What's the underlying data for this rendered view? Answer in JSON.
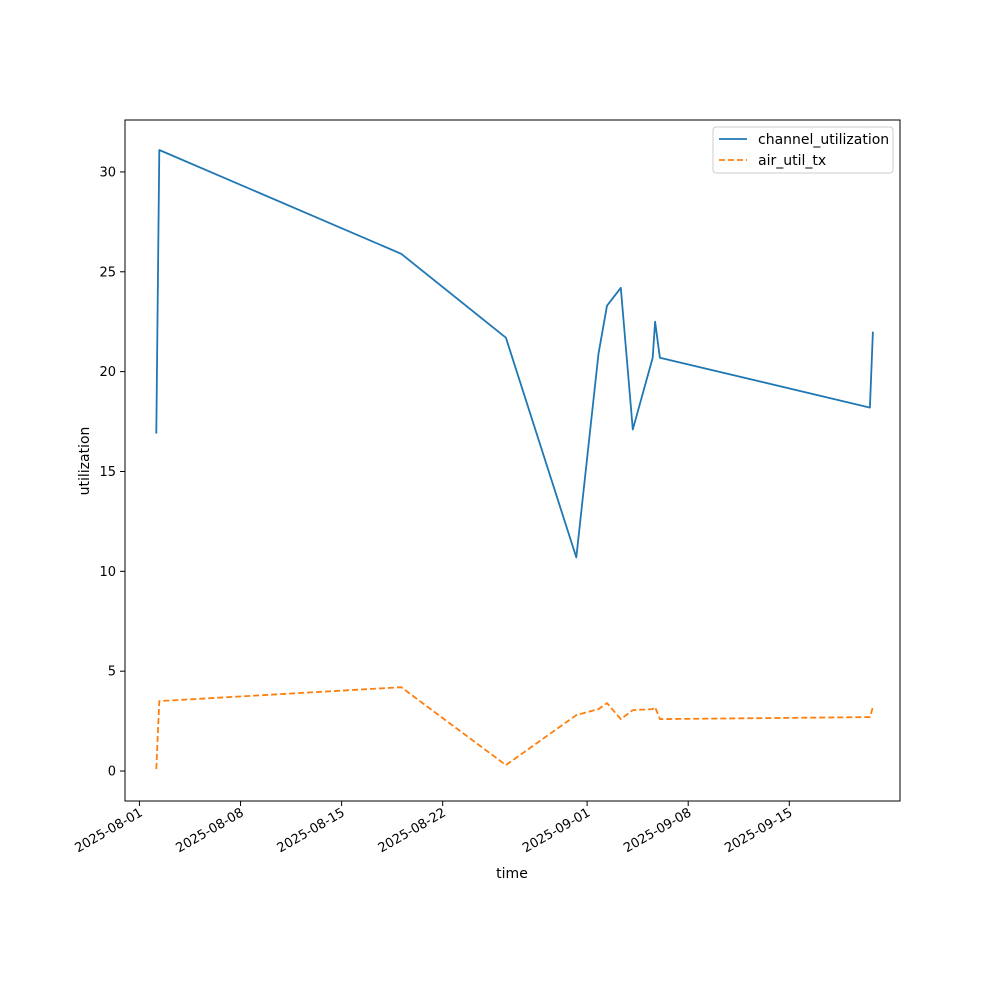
{
  "chart_data": {
    "type": "line",
    "title": "",
    "xlabel": "time",
    "ylabel": "utilization",
    "x_scale": "date",
    "xlim": [
      "2025-07-31T00:00",
      "2025-09-22T16:00"
    ],
    "ylim": [
      -1.5,
      32.6
    ],
    "grid": false,
    "legend_position": "top-right",
    "x_ticks": [
      "2025-08-01",
      "2025-08-08",
      "2025-08-15",
      "2025-08-22",
      "2025-09-01",
      "2025-09-08",
      "2025-09-15"
    ],
    "y_ticks": [
      0,
      5,
      10,
      15,
      20,
      25,
      30
    ],
    "series": [
      {
        "name": "channel_utilization",
        "color": "#1f77b4",
        "dash": "solid",
        "x": [
          "2025-08-02T04:00",
          "2025-08-02T09:00",
          "2025-08-19T03:00",
          "2025-08-26T09:00",
          "2025-08-31T06:00",
          "2025-09-01T19:00",
          "2025-09-02T09:00",
          "2025-09-03T08:00",
          "2025-09-04T04:00",
          "2025-09-05T13:00",
          "2025-09-05T17:00",
          "2025-09-06T01:00",
          "2025-09-20T14:00",
          "2025-09-20T19:00"
        ],
        "y": [
          16.9,
          31.1,
          25.9,
          21.7,
          10.7,
          20.9,
          23.3,
          24.2,
          17.1,
          20.7,
          22.5,
          20.7,
          18.2,
          22.0
        ]
      },
      {
        "name": "air_util_tx",
        "color": "#ff7f0e",
        "dash": "dashed",
        "x": [
          "2025-08-02T04:00",
          "2025-08-02T09:00",
          "2025-08-19T03:00",
          "2025-08-26T09:00",
          "2025-08-31T06:00",
          "2025-09-01T19:00",
          "2025-09-02T09:00",
          "2025-09-03T08:00",
          "2025-09-04T04:00",
          "2025-09-05T13:00",
          "2025-09-05T17:00",
          "2025-09-06T01:00",
          "2025-09-20T14:00",
          "2025-09-20T19:00"
        ],
        "y": [
          0.1,
          3.5,
          4.2,
          0.3,
          2.8,
          3.1,
          3.4,
          2.6,
          3.05,
          3.1,
          3.2,
          2.6,
          2.7,
          3.2
        ]
      }
    ]
  }
}
